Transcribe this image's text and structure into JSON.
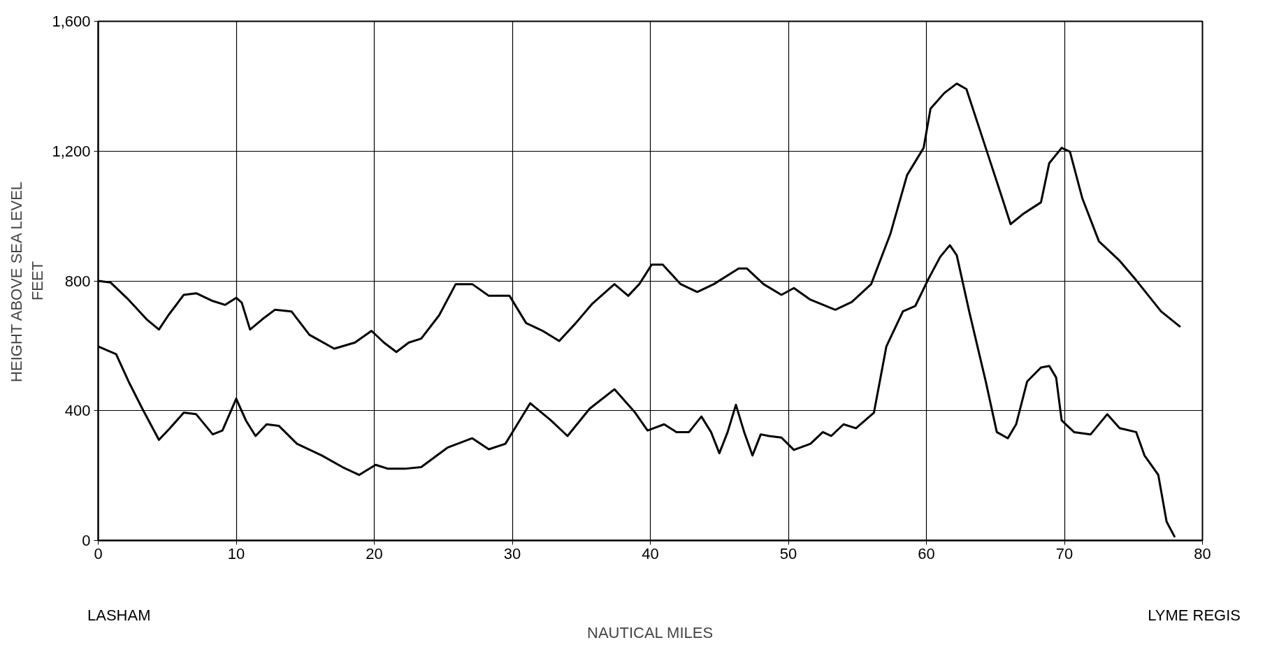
{
  "chart_data": {
    "type": "line",
    "xlabel": "NAUTICAL MILES",
    "ylabel": "HEIGHT ABOVE SEA LEVEL\nFEET",
    "annotations": [
      "LASHAM",
      "LYME REGIS"
    ],
    "xlim": [
      0,
      80
    ],
    "ylim": [
      0,
      1600
    ],
    "xticks": [
      0,
      10,
      20,
      30,
      40,
      50,
      60,
      70,
      80
    ],
    "yticks": [
      0,
      400,
      800,
      {
        "value": 1200,
        "label": "1,200"
      },
      {
        "value": 1600,
        "label": "1,600"
      }
    ],
    "grid": true,
    "marker": "none",
    "line_style": "solid",
    "series": [
      {
        "color": "#000000",
        "x": [
          0,
          0.9,
          2.2,
          3.5,
          4.4,
          5.1,
          6.2,
          7.1,
          8.3,
          9.2,
          10,
          10.4,
          11,
          11.9,
          12.8,
          14,
          15.3,
          17.1,
          18.6,
          19.8,
          20.7,
          21.6,
          22.5,
          23.4,
          24.7,
          25.9,
          27.1,
          28.3,
          29.8,
          31,
          32.2,
          33.4,
          34.6,
          35.8,
          37.4,
          38.4,
          39.2,
          40.1,
          40.9,
          42.2,
          43.4,
          44.6,
          46.4,
          47,
          48.2,
          49.5,
          50.4,
          51.6,
          53.4,
          54.6,
          56,
          57.4,
          58.6,
          59.8,
          60.3,
          61.3,
          62.2,
          62.9,
          64.3,
          65.5,
          66.1,
          67,
          68.3,
          68.9,
          69.8,
          70.4,
          71.3,
          72.5,
          74,
          75.2,
          77,
          78.4
        ],
        "values": [
          800,
          795,
          742,
          682,
          650,
          695,
          757,
          762,
          738,
          726,
          748,
          733,
          650,
          682,
          711,
          706,
          634,
          591,
          610,
          646,
          610,
          581,
          610,
          622,
          694,
          790,
          790,
          754,
          754,
          670,
          646,
          615,
          670,
          730,
          790,
          754,
          790,
          850,
          850,
          790,
          766,
          790,
          838,
          838,
          790,
          757,
          778,
          742,
          711,
          735,
          790,
          946,
          1126,
          1210,
          1331,
          1379,
          1408,
          1391,
          1210,
          1054,
          975,
          1006,
          1042,
          1163,
          1210,
          1198,
          1054,
          922,
          862,
          802,
          706,
          658
        ]
      },
      {
        "color": "#000000",
        "x": [
          0,
          1.3,
          2.2,
          3.2,
          4.4,
          5.2,
          6.2,
          7.1,
          8.3,
          9,
          10,
          10.7,
          11.4,
          12.2,
          13.1,
          14.4,
          16.2,
          17.7,
          18.9,
          20.1,
          21,
          22.2,
          23.4,
          25.3,
          27.1,
          28.3,
          29.5,
          31.3,
          32.8,
          34,
          35.6,
          37.4,
          38.9,
          39.8,
          41,
          41.9,
          42.8,
          43.7,
          44.4,
          45,
          45.6,
          46.2,
          46.8,
          47.4,
          48,
          48.6,
          49.5,
          50.4,
          51.6,
          52.5,
          53.1,
          54,
          54.9,
          56.2,
          57.1,
          58.3,
          59.2,
          60.1,
          61,
          61.7,
          62.2,
          63.1,
          64.3,
          65.1,
          65.9,
          66.5,
          67.3,
          68.3,
          68.9,
          69.4,
          69.8,
          70.7,
          71.9,
          73.1,
          74,
          75.2,
          75.8,
          76.8,
          77.4,
          78
        ],
        "values": [
          598,
          574,
          490,
          406,
          310,
          346,
          394,
          389,
          327,
          339,
          437,
          370,
          322,
          358,
          353,
          298,
          262,
          226,
          202,
          233,
          221,
          221,
          226,
          286,
          315,
          281,
          298,
          423,
          370,
          322,
          406,
          466,
          394,
          339,
          358,
          334,
          334,
          382,
          334,
          269,
          334,
          418,
          334,
          262,
          327,
          322,
          317,
          279,
          298,
          334,
          322,
          358,
          346,
          394,
          598,
          706,
          723,
          802,
          874,
          910,
          879,
          706,
          490,
          334,
          315,
          358,
          490,
          533,
          538,
          502,
          370,
          334,
          327,
          389,
          346,
          334,
          262,
          202,
          58,
          10
        ]
      }
    ]
  }
}
